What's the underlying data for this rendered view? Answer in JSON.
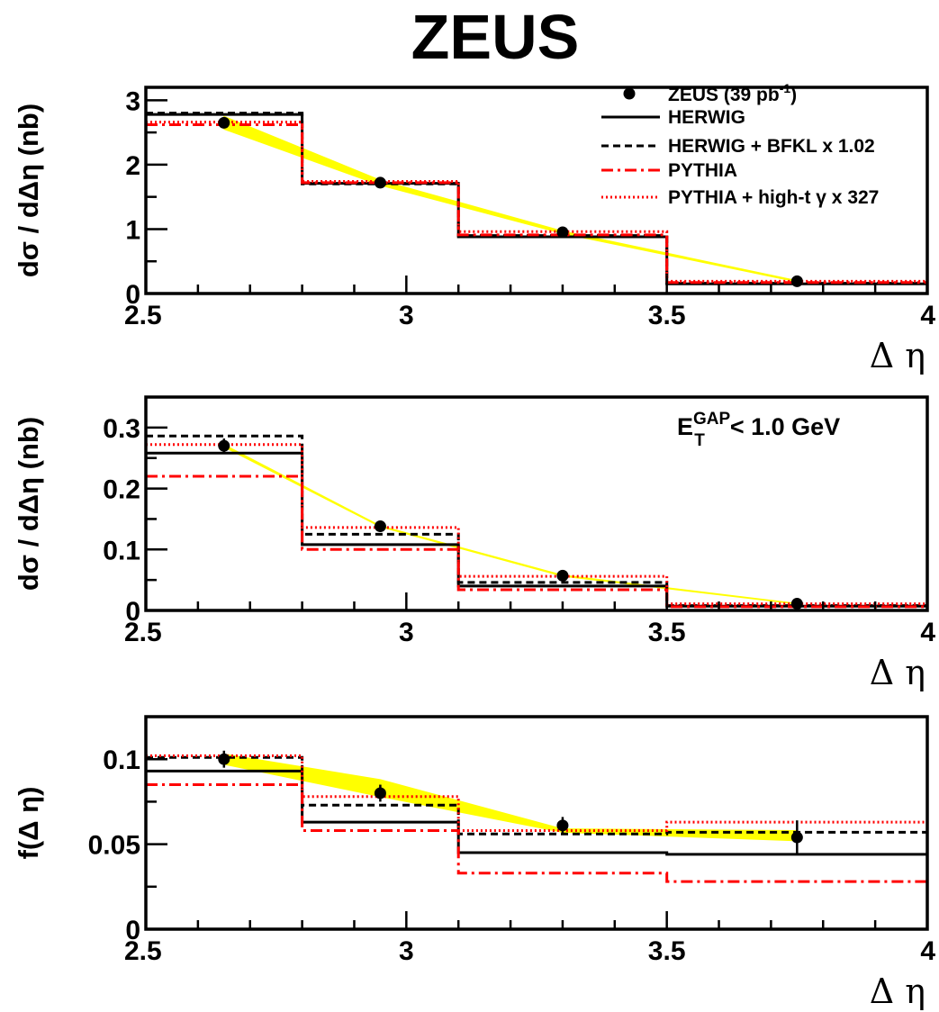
{
  "header": {
    "title": "ZEUS"
  },
  "legend": [
    {
      "key": "data",
      "label_main": "ZEUS (39 pb",
      "label_sup": "-1",
      "label_end": ")"
    },
    {
      "key": "herwig",
      "label": "HERWIG"
    },
    {
      "key": "herwig_bfkl",
      "label": "HERWIG + BFKL x 1.02"
    },
    {
      "key": "pythia",
      "label": "PYTHIA"
    },
    {
      "key": "pythia_hight",
      "label": "PYTHIA + high-t γ x 327"
    }
  ],
  "styles": {
    "herwig": {
      "color": "#000000",
      "dash": ""
    },
    "herwig_bfkl": {
      "color": "#000000",
      "dash": "8,5"
    },
    "pythia": {
      "color": "#ff0000",
      "dash": "13,5,3,5"
    },
    "pythia_hight": {
      "color": "#ff0000",
      "dash": "2,3"
    },
    "band": {
      "color": "#ffff00"
    },
    "data": {
      "color": "#000000"
    }
  },
  "chart_data": [
    {
      "type": "line",
      "subtype": "histogram-steps",
      "ylabel": "dσ / dΔη (nb)",
      "xlabel": "Δ η",
      "xlim": [
        2.5,
        4.0
      ],
      "ylim": [
        0,
        3.2
      ],
      "xticks": [
        2.5,
        3,
        3.5,
        4
      ],
      "xtick_labels": [
        "2.5",
        "3",
        "3.5",
        "4"
      ],
      "yticks": [
        0,
        1,
        2,
        3
      ],
      "ytick_labels": [
        "0",
        "1",
        "2",
        "3"
      ],
      "yminor": 0.5,
      "bin_edges": [
        2.5,
        2.8,
        3.1,
        3.5,
        4.0
      ],
      "annotation": null,
      "show_legend": true,
      "data_points": {
        "x": [
          2.65,
          2.95,
          3.3,
          3.75
        ],
        "y": [
          2.65,
          1.72,
          0.95,
          0.19
        ],
        "yerr": [
          0.06,
          0.04,
          0.03,
          0.01
        ]
      },
      "band": {
        "x": [
          2.65,
          2.95,
          3.3,
          3.75
        ],
        "low": [
          2.55,
          1.68,
          0.93,
          0.18
        ],
        "high": [
          2.75,
          1.76,
          0.97,
          0.2
        ]
      },
      "series": [
        {
          "key": "herwig",
          "name": "HERWIG",
          "values": [
            2.78,
            1.71,
            0.88,
            0.15
          ]
        },
        {
          "key": "herwig_bfkl",
          "name": "HERWIG + BFKL x 1.02",
          "values": [
            2.8,
            1.7,
            0.9,
            0.16
          ]
        },
        {
          "key": "pythia",
          "name": "PYTHIA",
          "values": [
            2.62,
            1.72,
            0.91,
            0.17
          ]
        },
        {
          "key": "pythia_hight",
          "name": "PYTHIA + high-t γ x 327",
          "values": [
            2.66,
            1.74,
            0.96,
            0.19
          ]
        }
      ]
    },
    {
      "type": "line",
      "subtype": "histogram-steps",
      "ylabel": "dσ / dΔη (nb)",
      "xlabel": "Δ η",
      "xlim": [
        2.5,
        4.0
      ],
      "ylim": [
        0,
        0.35
      ],
      "xticks": [
        2.5,
        3,
        3.5,
        4
      ],
      "xtick_labels": [
        "2.5",
        "3",
        "3.5",
        "4"
      ],
      "yticks": [
        0,
        0.1,
        0.2,
        0.3
      ],
      "ytick_labels": [
        "0",
        "0.1",
        "0.2",
        "0.3"
      ],
      "yminor": 0.05,
      "bin_edges": [
        2.5,
        2.8,
        3.1,
        3.5,
        4.0
      ],
      "annotation": {
        "main": "E",
        "sup": "GAP",
        "sub": "T",
        "rest": "< 1.0 GeV"
      },
      "show_legend": false,
      "data_points": {
        "x": [
          2.65,
          2.95,
          3.3,
          3.75
        ],
        "y": [
          0.27,
          0.138,
          0.057,
          0.011
        ],
        "yerr": [
          0.012,
          0.008,
          0.005,
          0.002
        ]
      },
      "band": {
        "x": [
          2.65,
          2.95,
          3.3,
          3.75
        ],
        "low": [
          0.268,
          0.137,
          0.056,
          0.0105
        ],
        "high": [
          0.272,
          0.139,
          0.058,
          0.0115
        ]
      },
      "series": [
        {
          "key": "herwig",
          "name": "HERWIG",
          "values": [
            0.258,
            0.108,
            0.04,
            0.007
          ]
        },
        {
          "key": "herwig_bfkl",
          "name": "HERWIG + BFKL x 1.02",
          "values": [
            0.286,
            0.125,
            0.046,
            0.008
          ]
        },
        {
          "key": "pythia",
          "name": "PYTHIA",
          "values": [
            0.22,
            0.1,
            0.034,
            0.006
          ]
        },
        {
          "key": "pythia_hight",
          "name": "PYTHIA + high-t γ x 327",
          "values": [
            0.272,
            0.136,
            0.056,
            0.011
          ]
        }
      ]
    },
    {
      "type": "line",
      "subtype": "histogram-steps",
      "ylabel": "f(Δ η)",
      "xlabel": "Δ η",
      "xlim": [
        2.5,
        4.0
      ],
      "ylim": [
        0,
        0.125
      ],
      "xticks": [
        2.5,
        3,
        3.5,
        4
      ],
      "xtick_labels": [
        "2.5",
        "3",
        "3.5",
        "4"
      ],
      "yticks": [
        0,
        0.05,
        0.1
      ],
      "ytick_labels": [
        "0",
        "0.05",
        "0.1"
      ],
      "yminor": 0.025,
      "bin_edges": [
        2.5,
        2.8,
        3.1,
        3.5,
        4.0
      ],
      "annotation": null,
      "show_legend": false,
      "data_points": {
        "x": [
          2.65,
          2.95,
          3.3,
          3.75
        ],
        "y": [
          0.1,
          0.08,
          0.061,
          0.054
        ],
        "yerr": [
          0.005,
          0.005,
          0.005,
          0.01
        ]
      },
      "band": {
        "x": [
          2.65,
          2.95,
          3.3,
          3.75
        ],
        "low": [
          0.097,
          0.078,
          0.057,
          0.052
        ],
        "high": [
          0.103,
          0.088,
          0.059,
          0.058
        ]
      },
      "series": [
        {
          "key": "herwig",
          "name": "HERWIG",
          "values": [
            0.093,
            0.063,
            0.045,
            0.044
          ]
        },
        {
          "key": "herwig_bfkl",
          "name": "HERWIG + BFKL x 1.02",
          "values": [
            0.101,
            0.073,
            0.056,
            0.057
          ]
        },
        {
          "key": "pythia",
          "name": "PYTHIA",
          "values": [
            0.085,
            0.058,
            0.033,
            0.028
          ]
        },
        {
          "key": "pythia_hight",
          "name": "PYTHIA + high-t γ x 327",
          "values": [
            0.102,
            0.078,
            0.058,
            0.063
          ]
        }
      ]
    }
  ]
}
